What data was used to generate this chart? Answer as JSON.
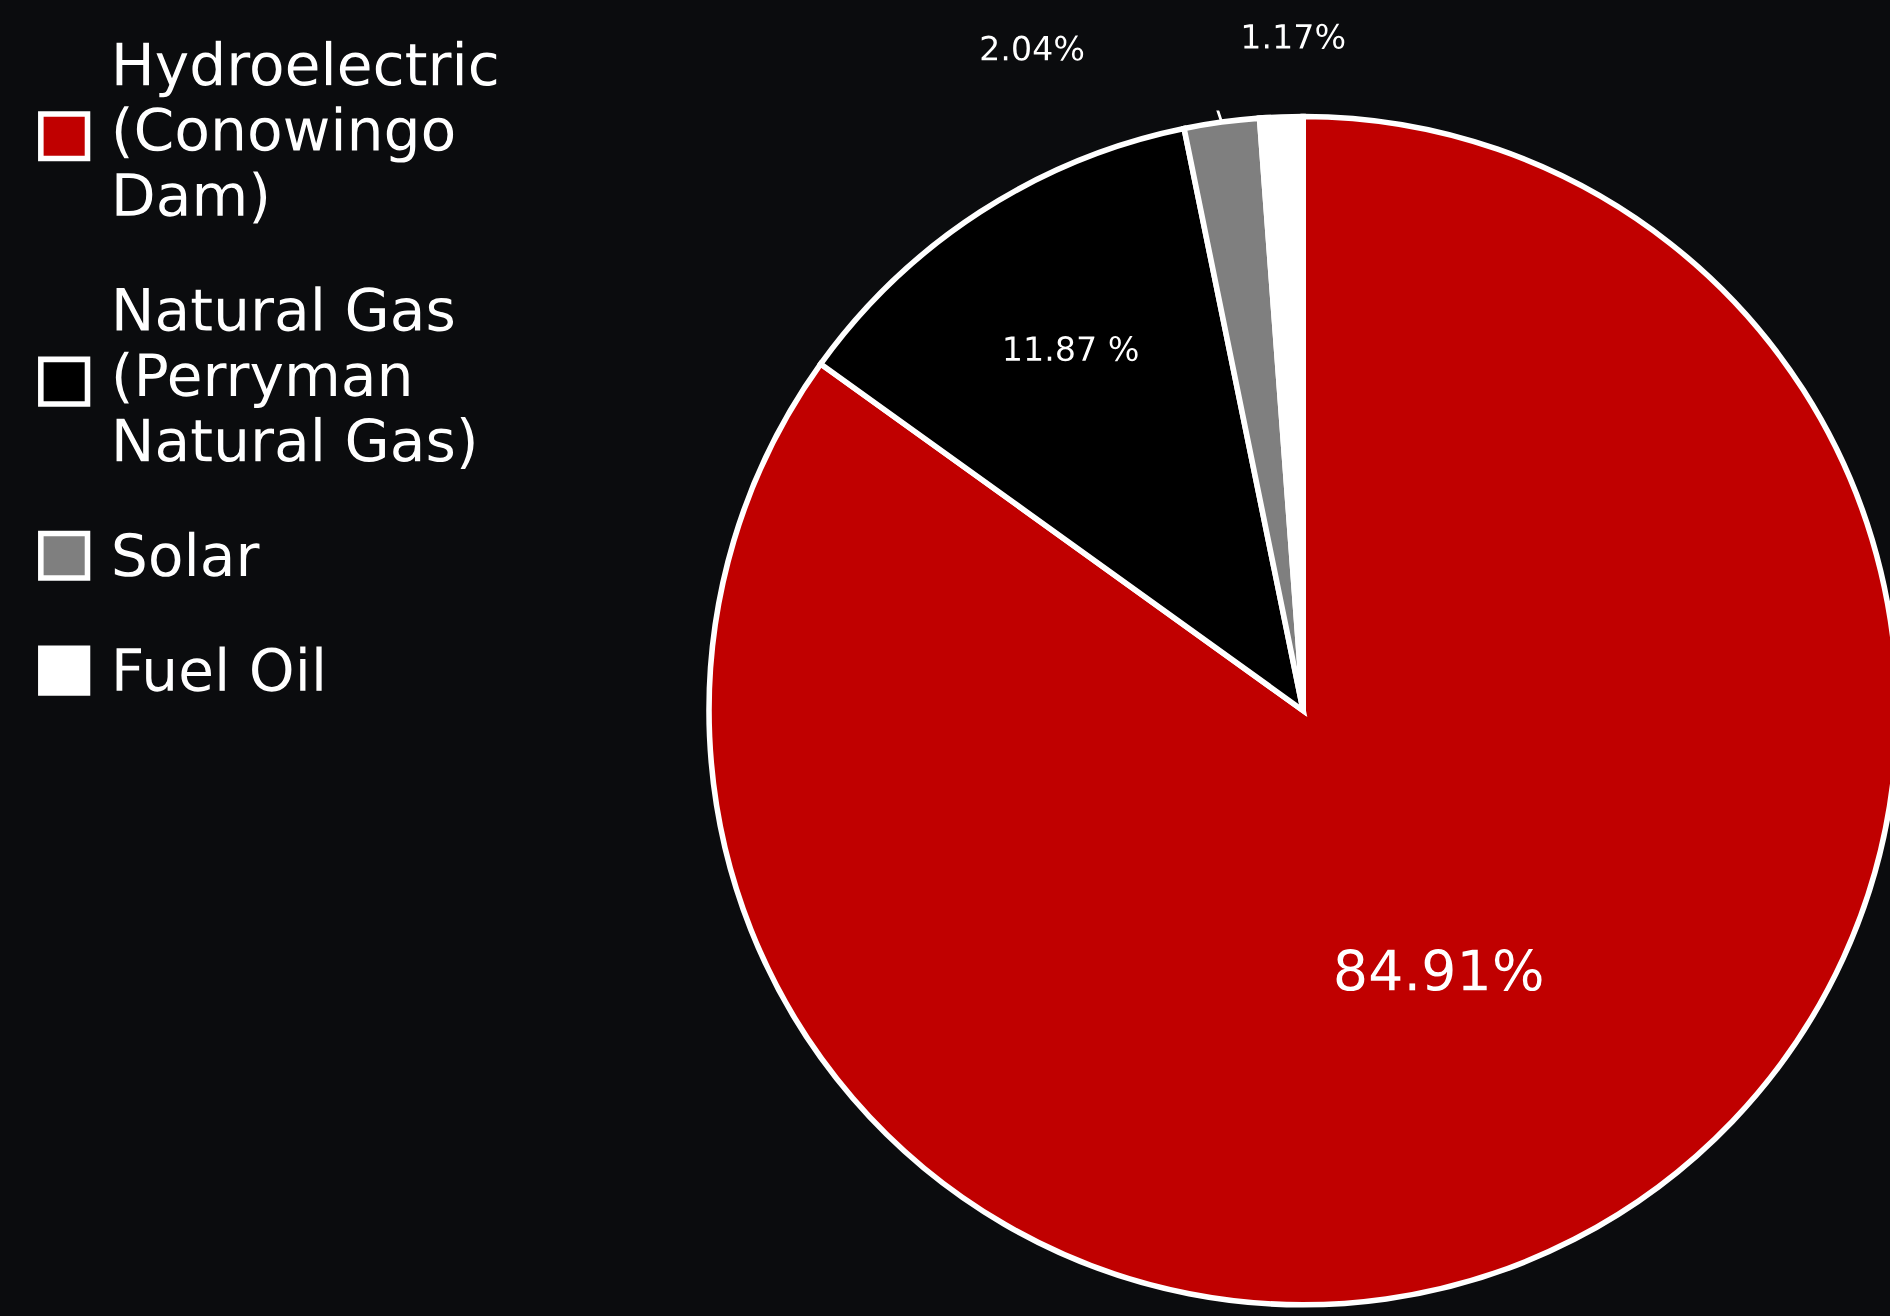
{
  "chart_data": {
    "type": "pie",
    "categories": [
      "Hydroelectric (Conowingo Dam)",
      "Natural Gas (Perryman Natural Gas)",
      "Solar",
      "Fuel Oil"
    ],
    "values": [
      84.91,
      11.87,
      2.04,
      1.17
    ],
    "colors": [
      "#c00000",
      "#000000",
      "#7f7f7f",
      "#ffffff"
    ],
    "value_labels": [
      "84.91%",
      "11.87 %",
      "2.04%",
      "1.17%"
    ],
    "legend": "left"
  }
}
